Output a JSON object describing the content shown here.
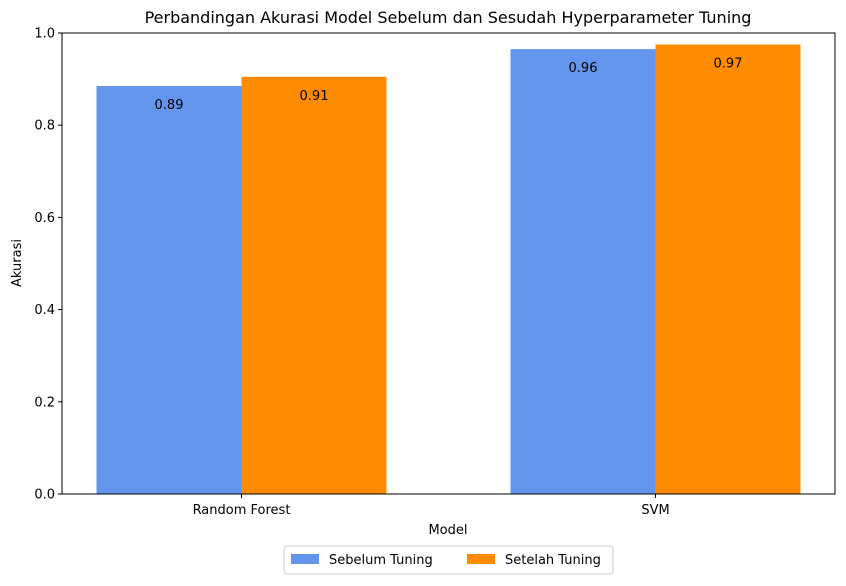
{
  "chart_data": {
    "type": "bar",
    "title": "Perbandingan Akurasi Model Sebelum dan Sesudah Hyperparameter Tuning",
    "xlabel": "Model",
    "ylabel": "Akurasi",
    "categories": [
      "Random Forest",
      "SVM"
    ],
    "series": [
      {
        "name": "Sebelum Tuning",
        "values": [
          0.885,
          0.965
        ],
        "labels": [
          "0.89",
          "0.96"
        ],
        "color": "#6495ED"
      },
      {
        "name": "Setelah Tuning",
        "values": [
          0.905,
          0.975
        ],
        "labels": [
          "0.91",
          "0.97"
        ],
        "color": "#FF8C00"
      }
    ],
    "ylim": [
      0,
      1.0
    ],
    "yticks": [
      "0.0",
      "0.2",
      "0.4",
      "0.6",
      "0.8",
      "1.0"
    ],
    "grid": false,
    "legend_position": "bottom-center"
  }
}
